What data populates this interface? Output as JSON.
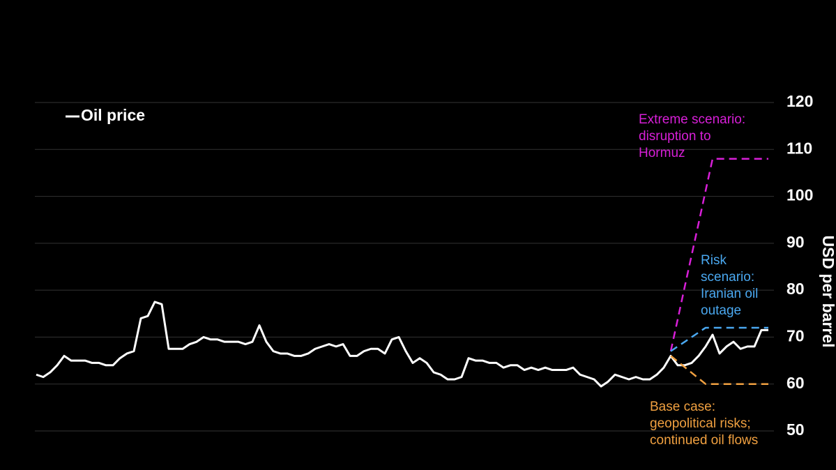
{
  "chart_data": {
    "type": "line",
    "y_label": "USD per barrel",
    "ylim": [
      50,
      120
    ],
    "yticks": [
      50,
      60,
      70,
      80,
      90,
      100,
      110,
      120
    ],
    "grid": true,
    "legend": "upper left",
    "series": [
      {
        "name": "Oil price",
        "color": "#ffffff",
        "values": [
          62,
          61.5,
          62.5,
          64,
          66,
          65,
          65,
          65,
          64.5,
          64.5,
          64,
          64,
          65.5,
          66.5,
          67,
          74,
          74.5,
          77.5,
          77,
          67.5,
          67.5,
          67.5,
          68.5,
          69,
          70,
          69.5,
          69.5,
          69,
          69,
          69,
          68.5,
          69,
          72.5,
          69,
          67,
          66.5,
          66.5,
          66,
          66,
          66.5,
          67.5,
          68,
          68.5,
          68,
          68.5,
          66,
          66,
          67,
          67.5,
          67.5,
          66.5,
          69.5,
          70,
          67,
          64.5,
          65.5,
          64.5,
          62.5,
          62,
          61,
          61,
          61.5,
          65.5,
          65,
          65,
          64.5,
          64.5,
          63.5,
          64,
          64,
          63,
          63.5,
          63,
          63.5,
          63,
          63,
          63,
          63.5,
          62,
          61.5,
          61,
          59.5,
          60.5,
          62,
          61.5,
          61,
          61.5,
          61,
          61,
          62,
          63.5,
          66,
          64,
          64,
          64.5,
          66,
          68,
          70.5,
          66.5,
          68,
          69,
          67.5,
          68,
          68,
          71.5,
          71.5
        ]
      },
      {
        "color": "#d81fd8",
        "dashed": true,
        "values": [
          null,
          null,
          null,
          null,
          null,
          null,
          null,
          null,
          null,
          null,
          null,
          null,
          null,
          null,
          null,
          null,
          null,
          null,
          null,
          null,
          null,
          null,
          null,
          null,
          null,
          null,
          null,
          null,
          null,
          null,
          null,
          null,
          null,
          null,
          null,
          null,
          null,
          null,
          null,
          null,
          null,
          null,
          null,
          null,
          null,
          null,
          null,
          null,
          null,
          null,
          null,
          null,
          null,
          null,
          null,
          null,
          null,
          null,
          null,
          null,
          null,
          null,
          null,
          null,
          null,
          null,
          null,
          null,
          null,
          null,
          null,
          null,
          null,
          null,
          null,
          null,
          null,
          null,
          null,
          null,
          null,
          null,
          null,
          null,
          null,
          null,
          null,
          null,
          null,
          null,
          null,
          67,
          73.8,
          80.7,
          87.5,
          94.3,
          101.2,
          108,
          108,
          108,
          108,
          108,
          108,
          108,
          108,
          108
        ]
      },
      {
        "color": "#4aa8f0",
        "dashed": true,
        "values": [
          null,
          null,
          null,
          null,
          null,
          null,
          null,
          null,
          null,
          null,
          null,
          null,
          null,
          null,
          null,
          null,
          null,
          null,
          null,
          null,
          null,
          null,
          null,
          null,
          null,
          null,
          null,
          null,
          null,
          null,
          null,
          null,
          null,
          null,
          null,
          null,
          null,
          null,
          null,
          null,
          null,
          null,
          null,
          null,
          null,
          null,
          null,
          null,
          null,
          null,
          null,
          null,
          null,
          null,
          null,
          null,
          null,
          null,
          null,
          null,
          null,
          null,
          null,
          null,
          null,
          null,
          null,
          null,
          null,
          null,
          null,
          null,
          null,
          null,
          null,
          null,
          null,
          null,
          null,
          null,
          null,
          null,
          null,
          null,
          null,
          null,
          null,
          null,
          null,
          null,
          null,
          67,
          68,
          69,
          70,
          71,
          72,
          72,
          72,
          72,
          72,
          72,
          72,
          72,
          72,
          72
        ]
      },
      {
        "color": "#f0a040",
        "dashed": true,
        "values": [
          null,
          null,
          null,
          null,
          null,
          null,
          null,
          null,
          null,
          null,
          null,
          null,
          null,
          null,
          null,
          null,
          null,
          null,
          null,
          null,
          null,
          null,
          null,
          null,
          null,
          null,
          null,
          null,
          null,
          null,
          null,
          null,
          null,
          null,
          null,
          null,
          null,
          null,
          null,
          null,
          null,
          null,
          null,
          null,
          null,
          null,
          null,
          null,
          null,
          null,
          null,
          null,
          null,
          null,
          null,
          null,
          null,
          null,
          null,
          null,
          null,
          null,
          null,
          null,
          null,
          null,
          null,
          null,
          null,
          null,
          null,
          null,
          null,
          null,
          null,
          null,
          null,
          null,
          null,
          null,
          null,
          null,
          null,
          null,
          null,
          null,
          null,
          null,
          null,
          null,
          null,
          66,
          64.8,
          63.6,
          62.4,
          61.2,
          60,
          60,
          60,
          60,
          60,
          60,
          60,
          60,
          60,
          60
        ]
      }
    ],
    "annotations": [
      {
        "text": [
          "Extreme scenario:",
          "disruption to",
          "Hormuz"
        ],
        "color": "#d81fd8"
      },
      {
        "text": [
          "Risk",
          "scenario:",
          "Iranian oil",
          "outage"
        ],
        "color": "#4aa8f0"
      },
      {
        "text": [
          "Base case:",
          "geopolitical risks;",
          "continued oil flows"
        ],
        "color": "#f0a040"
      }
    ]
  }
}
